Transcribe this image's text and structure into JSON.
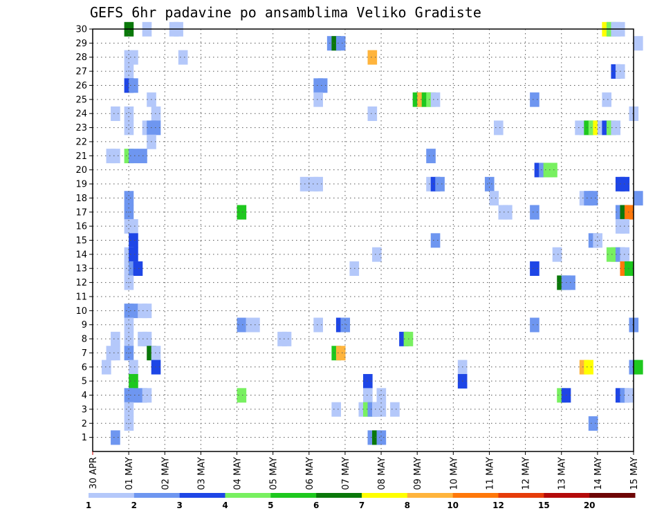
{
  "chart_data": {
    "type": "heatmap",
    "title": "GEFS 6hr padavine po ansamblima Veliko Gradiste",
    "xlabel": "",
    "ylabel": "",
    "x_ticks": [
      "30 APR",
      "01 MAY",
      "02 MAY",
      "03 MAY",
      "04 MAY",
      "05 MAY",
      "06 MAY",
      "07 MAY",
      "08 MAY",
      "09 MAY",
      "10 MAY",
      "11 MAY",
      "12 MAY",
      "13 MAY",
      "14 MAY",
      "15 MAY"
    ],
    "xlim": [
      0,
      15
    ],
    "ylim": [
      0,
      30
    ],
    "y_ticks": [
      1,
      2,
      3,
      4,
      5,
      6,
      7,
      8,
      9,
      10,
      11,
      12,
      13,
      14,
      15,
      16,
      17,
      18,
      19,
      20,
      21,
      22,
      23,
      24,
      25,
      26,
      27,
      28,
      29,
      30
    ],
    "grid": true,
    "colorbar": {
      "labels": [
        "1",
        "2",
        "3",
        "4",
        "5",
        "6",
        "7",
        "8",
        "10",
        "12",
        "15",
        "20"
      ],
      "colors": [
        "#b4c8fa",
        "#6e96f0",
        "#1e46e6",
        "#78f060",
        "#1ec81e",
        "#0a780a",
        "#ffff00",
        "#ffb43c",
        "#ff780a",
        "#e63c0a",
        "#b40a0a",
        "#6e0505"
      ]
    },
    "cells": [
      {
        "m": 30,
        "t": 3.5,
        "c": 5
      },
      {
        "m": 30,
        "t": 5.5,
        "c": 0
      },
      {
        "m": 30,
        "t": 8.5,
        "c": 0
      },
      {
        "m": 30,
        "t": 9,
        "c": 0
      },
      {
        "m": 30,
        "t": 56.5,
        "c": 6
      },
      {
        "m": 30,
        "t": 57,
        "c": 3
      },
      {
        "m": 30,
        "t": 57.5,
        "c": 0
      },
      {
        "m": 30,
        "t": 58,
        "c": 0
      },
      {
        "m": 29,
        "t": 26,
        "c": 1
      },
      {
        "m": 29,
        "t": 26.5,
        "c": 5
      },
      {
        "m": 29,
        "t": 27,
        "c": 1
      },
      {
        "m": 29,
        "t": 60,
        "c": 0
      },
      {
        "m": 28,
        "t": 3.5,
        "c": 0
      },
      {
        "m": 28,
        "t": 4,
        "c": 0
      },
      {
        "m": 28,
        "t": 9.5,
        "c": 0
      },
      {
        "m": 28,
        "t": 30.5,
        "c": 7
      },
      {
        "m": 27,
        "t": 3.5,
        "c": 0
      },
      {
        "m": 27,
        "t": 57.5,
        "c": 2
      },
      {
        "m": 27,
        "t": 58,
        "c": 0
      },
      {
        "m": 26,
        "t": 3.5,
        "c": 2
      },
      {
        "m": 26,
        "t": 4,
        "c": 1
      },
      {
        "m": 26,
        "t": 24.5,
        "c": 1
      },
      {
        "m": 26,
        "t": 25,
        "c": 1
      },
      {
        "m": 25,
        "t": 6,
        "c": 0
      },
      {
        "m": 25,
        "t": 24.5,
        "c": 0
      },
      {
        "m": 25,
        "t": 35.5,
        "c": 4
      },
      {
        "m": 25,
        "t": 36,
        "c": 7
      },
      {
        "m": 25,
        "t": 36.5,
        "c": 4
      },
      {
        "m": 25,
        "t": 37,
        "c": 3
      },
      {
        "m": 25,
        "t": 37.5,
        "c": 0
      },
      {
        "m": 25,
        "t": 48.5,
        "c": 1
      },
      {
        "m": 25,
        "t": 56.5,
        "c": 0
      },
      {
        "m": 24,
        "t": 2,
        "c": 0
      },
      {
        "m": 24,
        "t": 3.5,
        "c": 0
      },
      {
        "m": 24,
        "t": 6.5,
        "c": 0
      },
      {
        "m": 24,
        "t": 30.5,
        "c": 0
      },
      {
        "m": 24,
        "t": 59.5,
        "c": 0
      },
      {
        "m": 23,
        "t": 3.5,
        "c": 0
      },
      {
        "m": 23,
        "t": 5.5,
        "c": 0
      },
      {
        "m": 23,
        "t": 6,
        "c": 1
      },
      {
        "m": 23,
        "t": 6.5,
        "c": 1
      },
      {
        "m": 23,
        "t": 44.5,
        "c": 0
      },
      {
        "m": 23,
        "t": 53.5,
        "c": 0
      },
      {
        "m": 23,
        "t": 54,
        "c": 0
      },
      {
        "m": 23,
        "t": 54.5,
        "c": 4
      },
      {
        "m": 23,
        "t": 55,
        "c": 3
      },
      {
        "m": 23,
        "t": 55.5,
        "c": 6
      },
      {
        "m": 23,
        "t": 56,
        "c": 0
      },
      {
        "m": 23,
        "t": 56.5,
        "c": 2
      },
      {
        "m": 23,
        "t": 57,
        "c": 3
      },
      {
        "m": 23,
        "t": 57.5,
        "c": 0
      },
      {
        "m": 22,
        "t": 6,
        "c": 0
      },
      {
        "m": 21,
        "t": 1.5,
        "c": 0
      },
      {
        "m": 21,
        "t": 2,
        "c": 0
      },
      {
        "m": 21,
        "t": 3.5,
        "c": 3
      },
      {
        "m": 21,
        "t": 4,
        "c": 1
      },
      {
        "m": 21,
        "t": 5,
        "c": 1
      },
      {
        "m": 21,
        "t": 37,
        "c": 1
      },
      {
        "m": 20,
        "t": 49,
        "c": 2
      },
      {
        "m": 20,
        "t": 49.5,
        "c": 1
      },
      {
        "m": 20,
        "t": 50,
        "c": 3
      },
      {
        "m": 20,
        "t": 50.5,
        "c": 3
      },
      {
        "m": 19,
        "t": 23,
        "c": 0
      },
      {
        "m": 19,
        "t": 24,
        "c": 0
      },
      {
        "m": 19,
        "t": 24.5,
        "c": 0
      },
      {
        "m": 19,
        "t": 37,
        "c": 0
      },
      {
        "m": 19,
        "t": 37.5,
        "c": 2
      },
      {
        "m": 19,
        "t": 38,
        "c": 1
      },
      {
        "m": 19,
        "t": 43.5,
        "c": 1
      },
      {
        "m": 19,
        "t": 58,
        "c": 2
      },
      {
        "m": 19,
        "t": 58.5,
        "c": 2
      },
      {
        "m": 18,
        "t": 3.5,
        "c": 1
      },
      {
        "m": 18,
        "t": 44,
        "c": 0
      },
      {
        "m": 18,
        "t": 54,
        "c": 0
      },
      {
        "m": 18,
        "t": 54.5,
        "c": 1
      },
      {
        "m": 18,
        "t": 55,
        "c": 1
      },
      {
        "m": 18,
        "t": 60,
        "c": 1
      },
      {
        "m": 17,
        "t": 3.5,
        "c": 1
      },
      {
        "m": 17,
        "t": 16,
        "c": 4
      },
      {
        "m": 17,
        "t": 45,
        "c": 0
      },
      {
        "m": 17,
        "t": 45.5,
        "c": 0
      },
      {
        "m": 17,
        "t": 48.5,
        "c": 1
      },
      {
        "m": 17,
        "t": 58,
        "c": 1
      },
      {
        "m": 17,
        "t": 58.5,
        "c": 5
      },
      {
        "m": 17,
        "t": 59,
        "c": 8
      },
      {
        "m": 16,
        "t": 3.5,
        "c": 0
      },
      {
        "m": 16,
        "t": 4,
        "c": 0
      },
      {
        "m": 16,
        "t": 58,
        "c": 0
      },
      {
        "m": 16,
        "t": 58.5,
        "c": 0
      },
      {
        "m": 15,
        "t": 4,
        "c": 2
      },
      {
        "m": 15,
        "t": 37.5,
        "c": 1
      },
      {
        "m": 15,
        "t": 55,
        "c": 1
      },
      {
        "m": 15,
        "t": 55.5,
        "c": 0
      },
      {
        "m": 14,
        "t": 3.5,
        "c": 0
      },
      {
        "m": 14,
        "t": 4,
        "c": 2
      },
      {
        "m": 14,
        "t": 31,
        "c": 0
      },
      {
        "m": 14,
        "t": 51,
        "c": 0
      },
      {
        "m": 14,
        "t": 57,
        "c": 3
      },
      {
        "m": 14,
        "t": 57.5,
        "c": 3
      },
      {
        "m": 14,
        "t": 58,
        "c": 1
      },
      {
        "m": 14,
        "t": 58.5,
        "c": 0
      },
      {
        "m": 13,
        "t": 3.5,
        "c": 0
      },
      {
        "m": 13,
        "t": 4,
        "c": 1
      },
      {
        "m": 13,
        "t": 4.5,
        "c": 2
      },
      {
        "m": 13,
        "t": 28.5,
        "c": 0
      },
      {
        "m": 13,
        "t": 48.5,
        "c": 2
      },
      {
        "m": 13,
        "t": 58.5,
        "c": 8
      },
      {
        "m": 13,
        "t": 59,
        "c": 4
      },
      {
        "m": 12,
        "t": 3.5,
        "c": 0
      },
      {
        "m": 12,
        "t": 51.5,
        "c": 5
      },
      {
        "m": 12,
        "t": 52,
        "c": 1
      },
      {
        "m": 12,
        "t": 52.5,
        "c": 1
      },
      {
        "m": 10,
        "t": 3.5,
        "c": 1
      },
      {
        "m": 10,
        "t": 4,
        "c": 1
      },
      {
        "m": 10,
        "t": 5,
        "c": 0
      },
      {
        "m": 10,
        "t": 5.5,
        "c": 0
      },
      {
        "m": 9,
        "t": 3.5,
        "c": 0
      },
      {
        "m": 9,
        "t": 16,
        "c": 1
      },
      {
        "m": 9,
        "t": 17,
        "c": 0
      },
      {
        "m": 9,
        "t": 17.5,
        "c": 0
      },
      {
        "m": 9,
        "t": 24.5,
        "c": 0
      },
      {
        "m": 9,
        "t": 27,
        "c": 2
      },
      {
        "m": 9,
        "t": 27.5,
        "c": 1
      },
      {
        "m": 9,
        "t": 48.5,
        "c": 1
      },
      {
        "m": 9,
        "t": 59.5,
        "c": 1
      },
      {
        "m": 8,
        "t": 2,
        "c": 0
      },
      {
        "m": 8,
        "t": 3.5,
        "c": 0
      },
      {
        "m": 8,
        "t": 5,
        "c": 0
      },
      {
        "m": 8,
        "t": 5.5,
        "c": 0
      },
      {
        "m": 8,
        "t": 20.5,
        "c": 0
      },
      {
        "m": 8,
        "t": 21,
        "c": 0
      },
      {
        "m": 8,
        "t": 34,
        "c": 2
      },
      {
        "m": 8,
        "t": 34.5,
        "c": 3
      },
      {
        "m": 7,
        "t": 1.5,
        "c": 0
      },
      {
        "m": 7,
        "t": 2,
        "c": 0
      },
      {
        "m": 7,
        "t": 3.5,
        "c": 1
      },
      {
        "m": 7,
        "t": 6,
        "c": 5
      },
      {
        "m": 7,
        "t": 6.5,
        "c": 0
      },
      {
        "m": 7,
        "t": 26.5,
        "c": 4
      },
      {
        "m": 7,
        "t": 27,
        "c": 7
      },
      {
        "m": 6,
        "t": 1,
        "c": 0
      },
      {
        "m": 6,
        "t": 4,
        "c": 0
      },
      {
        "m": 6,
        "t": 6.5,
        "c": 2
      },
      {
        "m": 6,
        "t": 40.5,
        "c": 0
      },
      {
        "m": 6,
        "t": 54,
        "c": 7
      },
      {
        "m": 6,
        "t": 54.5,
        "c": 6
      },
      {
        "m": 6,
        "t": 59.5,
        "c": 1
      },
      {
        "m": 6,
        "t": 60,
        "c": 4
      },
      {
        "m": 5,
        "t": 4,
        "c": 4
      },
      {
        "m": 5,
        "t": 30,
        "c": 2
      },
      {
        "m": 5,
        "t": 40.5,
        "c": 2
      },
      {
        "m": 4,
        "t": 3.5,
        "c": 1
      },
      {
        "m": 4,
        "t": 4,
        "c": 1
      },
      {
        "m": 4,
        "t": 5,
        "c": 1
      },
      {
        "m": 4,
        "t": 5.5,
        "c": 0
      },
      {
        "m": 4,
        "t": 16,
        "c": 3
      },
      {
        "m": 4,
        "t": 30,
        "c": 0
      },
      {
        "m": 4,
        "t": 31.5,
        "c": 0
      },
      {
        "m": 4,
        "t": 51.5,
        "c": 3
      },
      {
        "m": 4,
        "t": 52,
        "c": 2
      },
      {
        "m": 4,
        "t": 58,
        "c": 2
      },
      {
        "m": 4,
        "t": 58.5,
        "c": 1
      },
      {
        "m": 4,
        "t": 59,
        "c": 0
      },
      {
        "m": 3,
        "t": 3.5,
        "c": 0
      },
      {
        "m": 3,
        "t": 26.5,
        "c": 0
      },
      {
        "m": 3,
        "t": 29.5,
        "c": 0
      },
      {
        "m": 3,
        "t": 30,
        "c": 3
      },
      {
        "m": 3,
        "t": 30.5,
        "c": 1
      },
      {
        "m": 3,
        "t": 31,
        "c": 0
      },
      {
        "m": 3,
        "t": 31.5,
        "c": 0
      },
      {
        "m": 3,
        "t": 33,
        "c": 0
      },
      {
        "m": 2,
        "t": 3.5,
        "c": 0
      },
      {
        "m": 2,
        "t": 55,
        "c": 1
      },
      {
        "m": 1,
        "t": 2,
        "c": 1
      },
      {
        "m": 1,
        "t": 30.5,
        "c": 1
      },
      {
        "m": 1,
        "t": 31,
        "c": 5
      },
      {
        "m": 1,
        "t": 31.5,
        "c": 1
      }
    ]
  }
}
